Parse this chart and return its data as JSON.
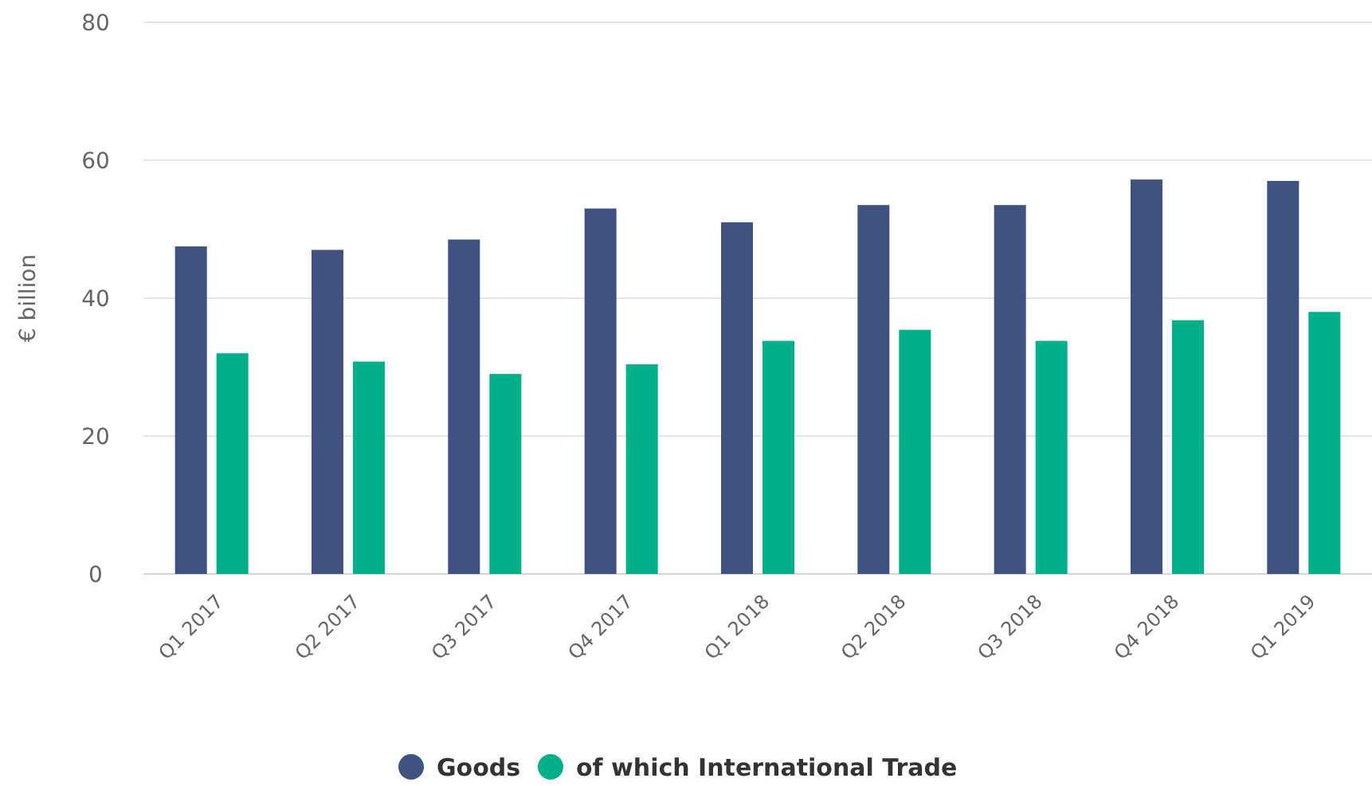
{
  "chart_data": {
    "type": "bar",
    "ylabel": "€ billion",
    "categories": [
      "Q1 2017",
      "Q2 2017",
      "Q3 2017",
      "Q4 2017",
      "Q1 2018",
      "Q2 2018",
      "Q3 2018",
      "Q4 2018",
      "Q1 2019"
    ],
    "series": [
      {
        "name": "Goods",
        "color": "#3f5280",
        "values": [
          47.5,
          47,
          48.5,
          53,
          51,
          53.5,
          53.5,
          57.2,
          57
        ]
      },
      {
        "name": "of which International Trade",
        "color": "#00b088",
        "values": [
          32,
          30.8,
          29,
          30.4,
          33.8,
          35.4,
          33.8,
          36.8,
          38
        ]
      }
    ],
    "ylim": [
      0,
      80
    ],
    "yticks": [
      0,
      20,
      40,
      60,
      80
    ],
    "grid": "y",
    "legend": "bottom"
  }
}
